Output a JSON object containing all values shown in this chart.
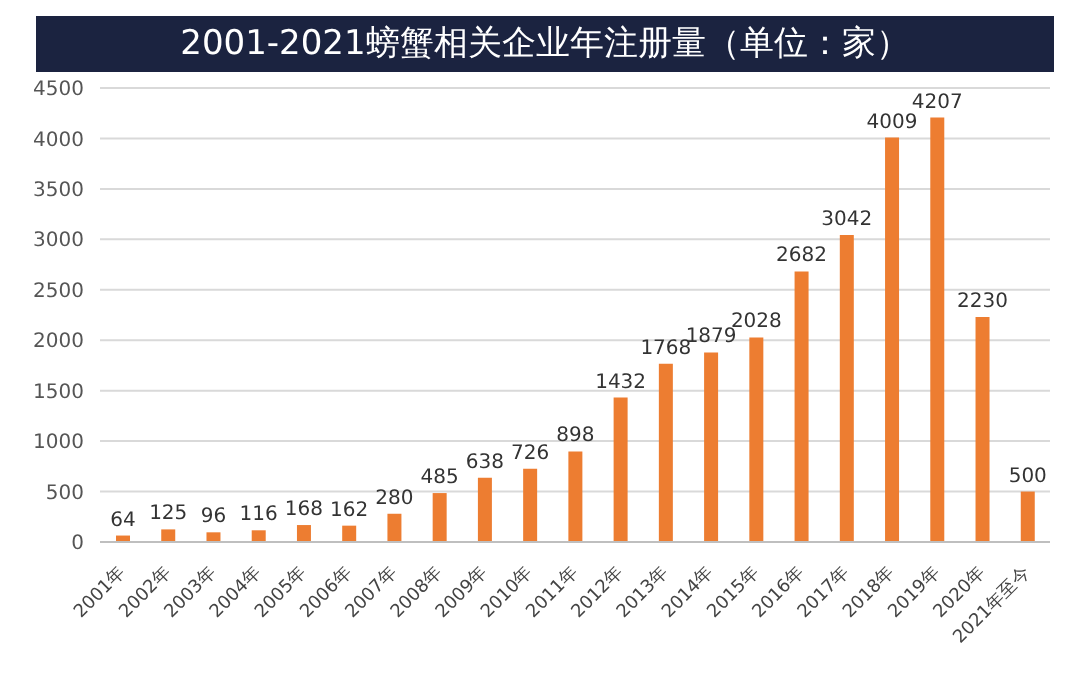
{
  "chart_data": {
    "type": "bar",
    "title": "2001-2021螃蟹相关企业年注册量（单位：家）",
    "categories": [
      "2001年",
      "2002年",
      "2003年",
      "2004年",
      "2005年",
      "2006年",
      "2007年",
      "2008年",
      "2009年",
      "2010年",
      "2011年",
      "2012年",
      "2013年",
      "2014年",
      "2015年",
      "2016年",
      "2017年",
      "2018年",
      "2019年",
      "2020年",
      "2021年至今"
    ],
    "values": [
      64,
      125,
      96,
      116,
      168,
      162,
      280,
      485,
      638,
      726,
      898,
      1432,
      1768,
      1879,
      2028,
      2682,
      3042,
      4009,
      4207,
      2230,
      500
    ],
    "color": "#ed7d31",
    "ylim": [
      0,
      4500
    ],
    "yticks": [
      0,
      500,
      1000,
      1500,
      2000,
      2500,
      3000,
      3500,
      4000,
      4500
    ],
    "grid": "y",
    "data_labels": true
  }
}
